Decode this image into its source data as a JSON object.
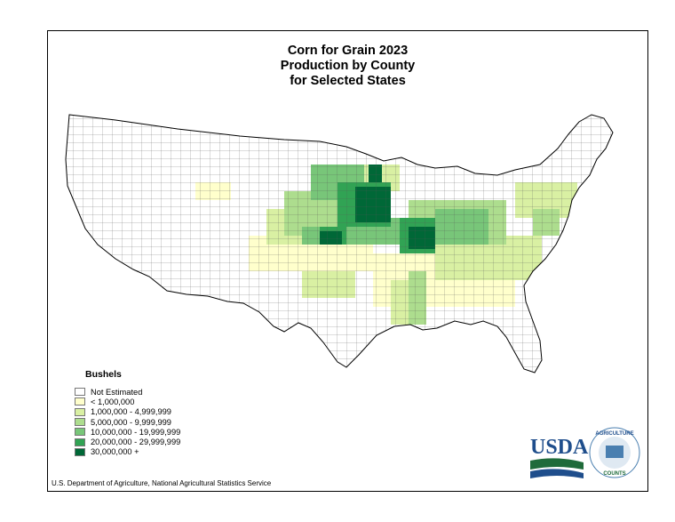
{
  "title_lines": [
    "Corn for Grain 2023",
    "Production by County",
    "for Selected States"
  ],
  "legend": {
    "title": "Bushels",
    "items": [
      {
        "label": "Not Estimated",
        "color": "#ffffff"
      },
      {
        "label": "< 1,000,000",
        "color": "#ffffcc"
      },
      {
        "label": "1,000,000 - 4,999,999",
        "color": "#d9f0a3"
      },
      {
        "label": "5,000,000 - 9,999,999",
        "color": "#addd8e"
      },
      {
        "label": "10,000,000 - 19,999,999",
        "color": "#78c679"
      },
      {
        "label": "20,000,000 - 29,999,999",
        "color": "#31a354"
      },
      {
        "label": "30,000,000 +",
        "color": "#006837"
      }
    ]
  },
  "source": "U.S. Department of Agriculture, National Agricultural Statistics Service",
  "logo": {
    "usda_text": "USDA",
    "badge_top": "AGRICULTURE",
    "badge_bottom": "COUNTS"
  }
}
